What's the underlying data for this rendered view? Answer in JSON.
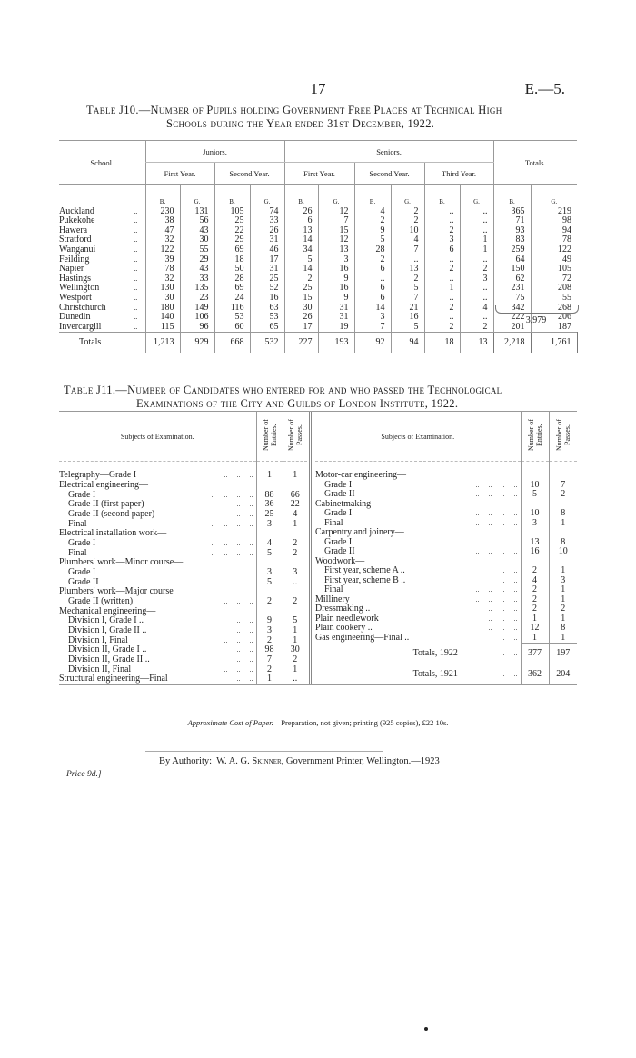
{
  "header": {
    "page_number": "17",
    "reference": "E.—5."
  },
  "table_j10": {
    "title_line1": "Table J10.—Number of Pupils holding Government Free Places at Technical High",
    "title_line2": "Schools during the Year ended 31st December, 1922.",
    "col_school": "School.",
    "col_juniors": "Juniors.",
    "col_seniors": "Seniors.",
    "col_totals": "Totals.",
    "first_year": "First Year.",
    "second_year": "Second Year.",
    "third_year": "Third Year.",
    "boys": "B.",
    "girls": "G.",
    "leader": "..",
    "rows": [
      {
        "school": "Auckland",
        "v": [
          "230",
          "131",
          "105",
          "74",
          "26",
          "12",
          "4",
          "2",
          "..",
          "..",
          "365",
          "219"
        ]
      },
      {
        "school": "Pukekohe",
        "v": [
          "38",
          "56",
          "25",
          "33",
          "6",
          "7",
          "2",
          "2",
          "..",
          "..",
          "71",
          "98"
        ]
      },
      {
        "school": "Hawera",
        "v": [
          "47",
          "43",
          "22",
          "26",
          "13",
          "15",
          "9",
          "10",
          "2",
          "..",
          "93",
          "94"
        ]
      },
      {
        "school": "Stratford",
        "v": [
          "32",
          "30",
          "29",
          "31",
          "14",
          "12",
          "5",
          "4",
          "3",
          "1",
          "83",
          "78"
        ]
      },
      {
        "school": "Wanganui",
        "v": [
          "122",
          "55",
          "69",
          "46",
          "34",
          "13",
          "28",
          "7",
          "6",
          "1",
          "259",
          "122"
        ]
      },
      {
        "school": "Feilding",
        "v": [
          "39",
          "29",
          "18",
          "17",
          "5",
          "3",
          "2",
          "..",
          "..",
          "..",
          "64",
          "49"
        ]
      },
      {
        "school": "Napier",
        "v": [
          "78",
          "43",
          "50",
          "31",
          "14",
          "16",
          "6",
          "13",
          "2",
          "2",
          "150",
          "105"
        ]
      },
      {
        "school": "Hastings",
        "v": [
          "32",
          "33",
          "28",
          "25",
          "2",
          "9",
          "..",
          "2",
          "..",
          "3",
          "62",
          "72"
        ]
      },
      {
        "school": "Wellington",
        "v": [
          "130",
          "135",
          "69",
          "52",
          "25",
          "16",
          "6",
          "5",
          "1",
          "..",
          "231",
          "208"
        ]
      },
      {
        "school": "Westport",
        "v": [
          "30",
          "23",
          "24",
          "16",
          "15",
          "9",
          "6",
          "7",
          "..",
          "..",
          "75",
          "55"
        ]
      },
      {
        "school": "Christchurch",
        "v": [
          "180",
          "149",
          "116",
          "63",
          "30",
          "31",
          "14",
          "21",
          "2",
          "4",
          "342",
          "268"
        ]
      },
      {
        "school": "Dunedin",
        "v": [
          "140",
          "106",
          "53",
          "53",
          "26",
          "31",
          "3",
          "16",
          "..",
          "..",
          "222",
          "206"
        ]
      },
      {
        "school": "Invercargill",
        "v": [
          "115",
          "96",
          "60",
          "65",
          "17",
          "19",
          "7",
          "5",
          "2",
          "2",
          "201",
          "187"
        ]
      }
    ],
    "totals": {
      "label": "Totals",
      "v": [
        "1,213",
        "929",
        "668",
        "532",
        "227",
        "193",
        "92",
        "94",
        "18",
        "13",
        "2,218",
        "1,761"
      ]
    },
    "grand_total": "3,979"
  },
  "table_j11": {
    "title_line1": "Table J11.—Number of Candidates who entered for and who passed the Technological",
    "title_line2": "Examinations of the City and Guilds of London Institute, 1922.",
    "col_subjects": "Subjects of Examination.",
    "col_entries": "Number of Entries.",
    "col_passes": "Number of Passes.",
    "left_rows": [
      {
        "subject": "Telegraphy—Grade I",
        "indent": false,
        "dots": "..     ..     ..",
        "entries": "1",
        "passes": "1"
      },
      {
        "subject": "Electrical engineering—",
        "indent": false,
        "dots": "",
        "entries": "",
        "passes": ""
      },
      {
        "subject": "Grade I",
        "indent": true,
        "dots": "..     ..     ..     ..",
        "entries": "88",
        "passes": "66"
      },
      {
        "subject": "Grade II (first paper)",
        "indent": true,
        "dots": "..     ..",
        "entries": "36",
        "passes": "22"
      },
      {
        "subject": "Grade II (second paper)",
        "indent": true,
        "dots": "..     ..",
        "entries": "25",
        "passes": "4"
      },
      {
        "subject": "Final",
        "indent": true,
        "dots": "..     ..     ..     ..",
        "entries": "3",
        "passes": "1"
      },
      {
        "subject": "Electrical installation work—",
        "indent": false,
        "dots": "",
        "entries": "",
        "passes": ""
      },
      {
        "subject": "Grade I",
        "indent": true,
        "dots": "..     ..     ..     ..",
        "entries": "4",
        "passes": "2"
      },
      {
        "subject": "Final",
        "indent": true,
        "dots": "..     ..     ..     ..",
        "entries": "5",
        "passes": "2"
      },
      {
        "subject": "Plumbers' work—Minor course—",
        "indent": false,
        "dots": "",
        "entries": "",
        "passes": ""
      },
      {
        "subject": "Grade I",
        "indent": true,
        "dots": "..     ..     ..     ..",
        "entries": "3",
        "passes": "3"
      },
      {
        "subject": "Grade II",
        "indent": true,
        "dots": "..     ..     ..     ..",
        "entries": "5",
        "passes": ".."
      },
      {
        "subject": "Plumbers' work—Major course",
        "indent": false,
        "dots": "",
        "entries": "",
        "passes": ""
      },
      {
        "subject": "Grade II (written)",
        "indent": true,
        "dots": "..     ..     ..",
        "entries": "2",
        "passes": "2"
      },
      {
        "subject": "Mechanical engineering—",
        "indent": false,
        "dots": "",
        "entries": "",
        "passes": ""
      },
      {
        "subject": "Division I, Grade I ..",
        "indent": true,
        "dots": "..     ..",
        "entries": "9",
        "passes": "5"
      },
      {
        "subject": "Division I, Grade II ..",
        "indent": true,
        "dots": "..     ..",
        "entries": "3",
        "passes": "1"
      },
      {
        "subject": "Division I, Final",
        "indent": true,
        "dots": "..     ..     ..",
        "entries": "2",
        "passes": "1"
      },
      {
        "subject": "Division II, Grade I ..",
        "indent": true,
        "dots": "..     ..",
        "entries": "98",
        "passes": "30"
      },
      {
        "subject": "Division II, Grade II ..",
        "indent": true,
        "dots": "..     ..",
        "entries": "7",
        "passes": "2"
      },
      {
        "subject": "Division II, Final",
        "indent": true,
        "dots": "..     ..     ..",
        "entries": "2",
        "passes": "1"
      },
      {
        "subject": "Structural engineering—Final",
        "indent": false,
        "dots": "..     ..",
        "entries": "1",
        "passes": ".."
      }
    ],
    "right_rows": [
      {
        "subject": "Motor-car engineering—",
        "indent": false,
        "dots": "",
        "entries": "",
        "passes": ""
      },
      {
        "subject": "Grade I",
        "indent": true,
        "dots": "..     ..     ..     ..",
        "entries": "10",
        "passes": "7"
      },
      {
        "subject": "Grade II",
        "indent": true,
        "dots": "..     ..     ..     ..",
        "entries": "5",
        "passes": "2"
      },
      {
        "subject": "Cabinetmaking—",
        "indent": false,
        "dots": "",
        "entries": "",
        "passes": ""
      },
      {
        "subject": "Grade I",
        "indent": true,
        "dots": "..     ..     ..     ..",
        "entries": "10",
        "passes": "8"
      },
      {
        "subject": "Final",
        "indent": true,
        "dots": "..     ..     ..     ..",
        "entries": "3",
        "passes": "1"
      },
      {
        "subject": "Carpentry and joinery—",
        "indent": false,
        "dots": "",
        "entries": "",
        "passes": ""
      },
      {
        "subject": "Grade I",
        "indent": true,
        "dots": "..     ..     ..     ..",
        "entries": "13",
        "passes": "8"
      },
      {
        "subject": "Grade II",
        "indent": true,
        "dots": "..     ..     ..     ..",
        "entries": "16",
        "passes": "10"
      },
      {
        "subject": "Woodwork—",
        "indent": false,
        "dots": "",
        "entries": "",
        "passes": ""
      },
      {
        "subject": "First year, scheme A ..",
        "indent": true,
        "dots": "..     ..",
        "entries": "2",
        "passes": "1"
      },
      {
        "subject": "First year, scheme B ..",
        "indent": true,
        "dots": "..     ..",
        "entries": "4",
        "passes": "3"
      },
      {
        "subject": "Final",
        "indent": true,
        "dots": "..     ..     ..     ..",
        "entries": "2",
        "passes": "1"
      },
      {
        "subject": "Millinery",
        "indent": false,
        "dots": "..     ..     ..     ..",
        "entries": "2",
        "passes": "1"
      },
      {
        "subject": "Dressmaking ..",
        "indent": false,
        "dots": "..     ..     ..",
        "entries": "2",
        "passes": "2"
      },
      {
        "subject": "Plain needlework",
        "indent": false,
        "dots": "..     ..     ..",
        "entries": "1",
        "passes": "1"
      },
      {
        "subject": "Plain cookery ..",
        "indent": false,
        "dots": "..     ..     ..",
        "entries": "12",
        "passes": "8"
      },
      {
        "subject": "Gas engineering—Final ..",
        "indent": false,
        "dots": "..     ..",
        "entries": "1",
        "passes": "1"
      }
    ],
    "totals": [
      {
        "label": "Totals, 1922",
        "dots": "..     ..",
        "entries": "377",
        "passes": "197"
      },
      {
        "label": "Totals, 1921",
        "dots": "..     ..",
        "entries": "362",
        "passes": "204"
      }
    ]
  },
  "cost_note": {
    "label": "Approximate Cost of Paper.",
    "text": "—Preparation, not given; printing (925 copies), £22 10s."
  },
  "footer": {
    "authority_prefix": "By Authority:  W. A. G. ",
    "printer_name": "Skinner",
    "authority_suffix": ", Government Printer, Wellington.—1923",
    "price": "Price 9d.]"
  }
}
